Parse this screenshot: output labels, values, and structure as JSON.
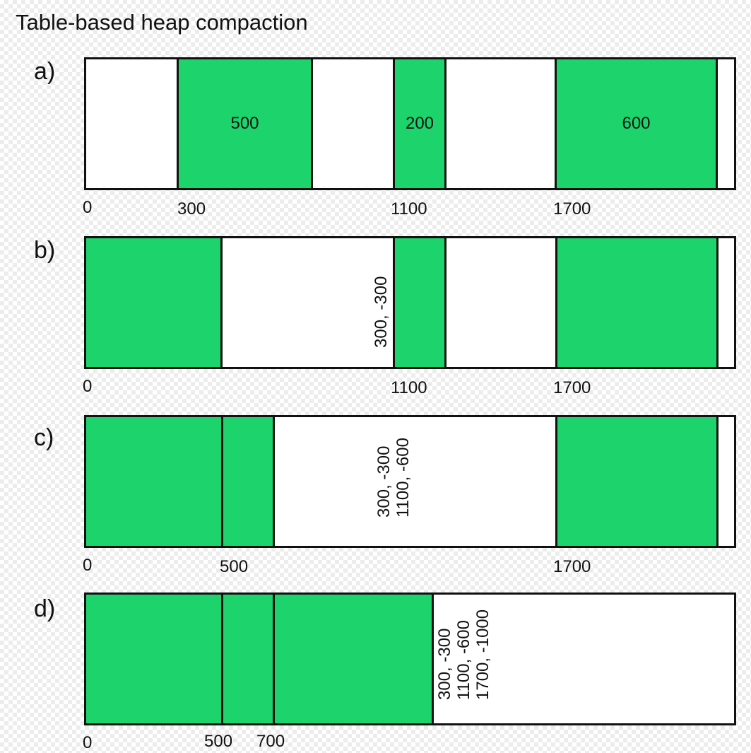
{
  "title": "Table-based heap compaction",
  "colors": {
    "live_block": "#1dd46c",
    "free_space": "#ffffff",
    "outline": "#111111"
  },
  "rows": [
    {
      "label": "a)",
      "blocks": [
        {
          "size_label": "500"
        },
        {
          "size_label": "200"
        },
        {
          "size_label": "600"
        }
      ],
      "addresses": [
        "0",
        "300",
        "1100",
        "1700"
      ],
      "table": []
    },
    {
      "label": "b)",
      "addresses": [
        "0",
        "1100",
        "1700"
      ],
      "table": [
        "300, -300"
      ]
    },
    {
      "label": "c)",
      "addresses": [
        "0",
        "500",
        "1700"
      ],
      "table": [
        "300, -300",
        "1100, -600"
      ]
    },
    {
      "label": "d)",
      "addresses": [
        "0",
        "500",
        "700"
      ],
      "table": [
        "300, -300",
        "1100, -600",
        "1700, -1000"
      ]
    }
  ]
}
